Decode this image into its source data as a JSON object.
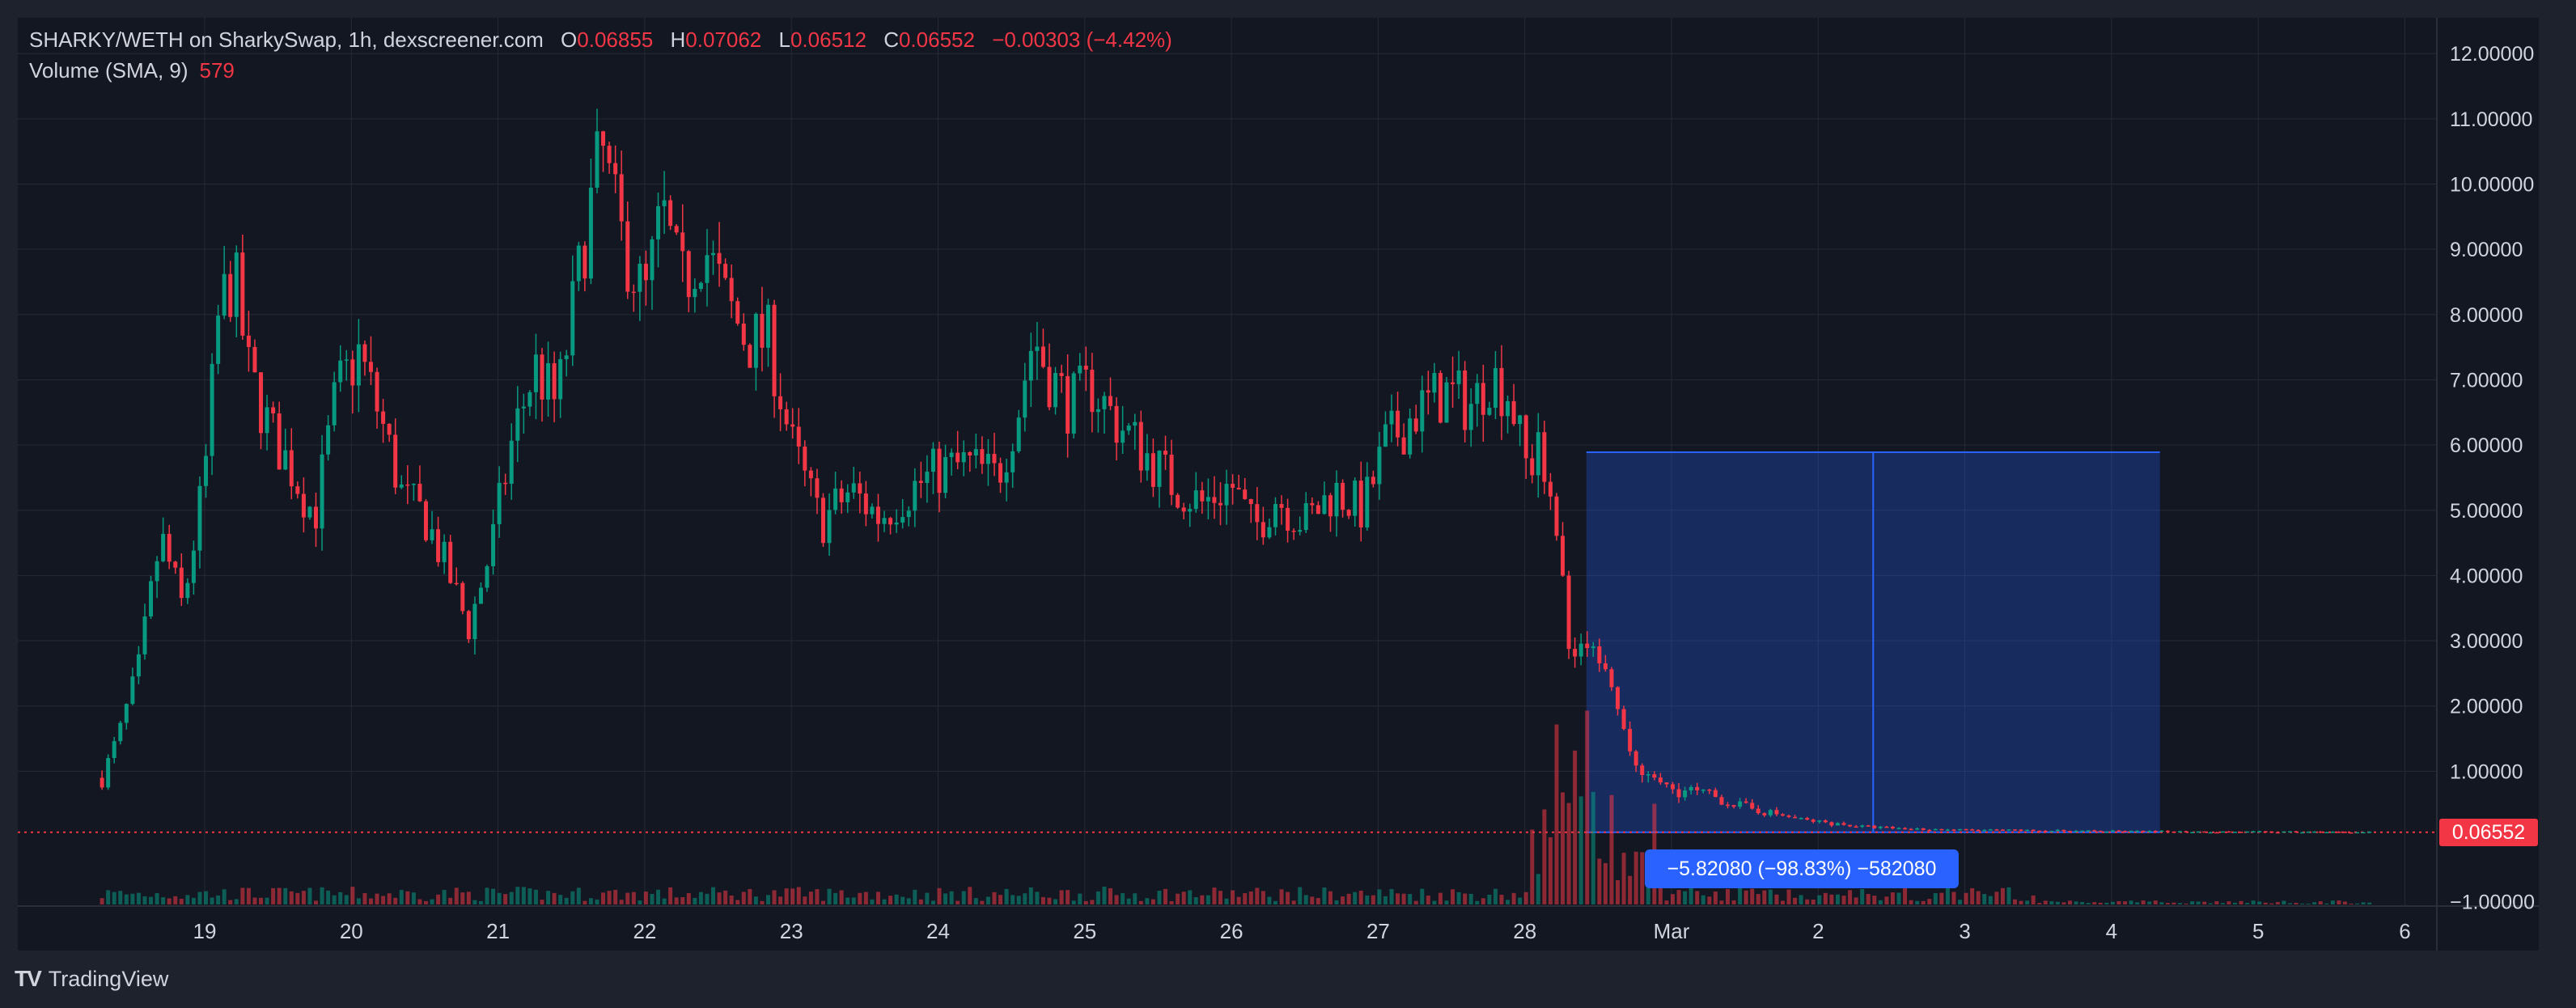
{
  "header": {
    "symbol": "SHARKY/WETH on SharkySwap, 1h, dexscreener.com",
    "o_label": "O",
    "o_value": "0.06855",
    "h_label": "H",
    "h_value": "0.07062",
    "l_label": "L",
    "l_value": "0.06512",
    "c_label": "C",
    "c_value": "0.06552",
    "change": "−0.00303 (−4.42%)"
  },
  "volume": {
    "label": "Volume (SMA, 9)",
    "value": "579"
  },
  "brand": {
    "name": "TradingView",
    "logo": "TV"
  },
  "price_badge": "0.06552",
  "measurement": "−5.82080 (−98.83%) −582080",
  "colors": {
    "up": "#089981",
    "down": "#f23645",
    "background": "#131722",
    "measure": "#2962ff"
  },
  "chart_data": {
    "type": "candlestick",
    "y_ticks": [
      "12.00000",
      "11.00000",
      "10.00000",
      "9.00000",
      "8.00000",
      "7.00000",
      "6.00000",
      "5.00000",
      "4.00000",
      "3.00000",
      "2.00000",
      "1.00000",
      "−1.00000"
    ],
    "x_ticks": [
      "19",
      "20",
      "21",
      "22",
      "23",
      "24",
      "25",
      "26",
      "27",
      "28",
      "Mar",
      "2",
      "3",
      "4",
      "5",
      "6"
    ],
    "ylim": [
      -1,
      12.5
    ],
    "last_price": 0.06552,
    "measure_range": {
      "from": 5.89,
      "to": 0.0655,
      "start_day": 28.42,
      "end_day": 32.33
    },
    "close_path": [
      [
        18.3,
        0.9
      ],
      [
        18.42,
        1.6
      ],
      [
        18.55,
        2.6
      ],
      [
        18.7,
        4.6
      ],
      [
        18.85,
        3.5
      ],
      [
        19.0,
        5.5
      ],
      [
        19.1,
        8.1
      ],
      [
        19.2,
        8.6
      ],
      [
        19.3,
        7.1
      ],
      [
        19.45,
        6.2
      ],
      [
        19.6,
        5.6
      ],
      [
        19.75,
        4.9
      ],
      [
        19.9,
        6.8
      ],
      [
        20.05,
        7.4
      ],
      [
        20.2,
        6.4
      ],
      [
        20.35,
        5.2
      ],
      [
        20.5,
        4.9
      ],
      [
        20.65,
        4.1
      ],
      [
        20.8,
        3.2
      ],
      [
        20.95,
        4.4
      ],
      [
        21.1,
        6.1
      ],
      [
        21.25,
        7.2
      ],
      [
        21.4,
        6.6
      ],
      [
        21.55,
        8.6
      ],
      [
        21.7,
        10.6
      ],
      [
        21.85,
        9.1
      ],
      [
        22.0,
        8.2
      ],
      [
        22.12,
        9.6
      ],
      [
        22.25,
        8.4
      ],
      [
        22.4,
        9.1
      ],
      [
        22.55,
        8.2
      ],
      [
        22.7,
        7.6
      ],
      [
        22.85,
        7.6
      ],
      [
        23.0,
        6.0
      ],
      [
        23.2,
        4.8
      ],
      [
        23.4,
        5.3
      ],
      [
        23.6,
        4.9
      ],
      [
        23.8,
        5.3
      ],
      [
        24.0,
        5.6
      ],
      [
        24.2,
        5.7
      ],
      [
        24.4,
        5.5
      ],
      [
        24.55,
        6.6
      ],
      [
        24.65,
        7.7
      ],
      [
        24.75,
        7.1
      ],
      [
        24.9,
        6.6
      ],
      [
        25.05,
        6.9
      ],
      [
        25.2,
        6.4
      ],
      [
        25.4,
        5.9
      ],
      [
        25.6,
        5.4
      ],
      [
        25.8,
        5.1
      ],
      [
        26.0,
        5.4
      ],
      [
        26.15,
        4.7
      ],
      [
        26.3,
        5.2
      ],
      [
        26.5,
        4.8
      ],
      [
        26.7,
        5.3
      ],
      [
        26.9,
        5.0
      ],
      [
        27.05,
        6.0
      ],
      [
        27.25,
        6.5
      ],
      [
        27.45,
        6.8
      ],
      [
        27.65,
        6.6
      ],
      [
        27.75,
        7.1
      ],
      [
        27.9,
        6.8
      ],
      [
        28.0,
        5.7
      ],
      [
        28.1,
        5.8
      ],
      [
        28.2,
        5.3
      ],
      [
        28.3,
        2.9
      ],
      [
        28.4,
        3.0
      ],
      [
        28.5,
        2.7
      ],
      [
        28.6,
        2.1
      ],
      [
        28.7,
        1.4
      ],
      [
        28.8,
        0.9
      ],
      [
        28.95,
        0.75
      ],
      [
        29.1,
        0.7
      ],
      [
        29.3,
        0.6
      ],
      [
        29.5,
        0.45
      ],
      [
        29.7,
        0.35
      ],
      [
        29.9,
        0.25
      ],
      [
        30.1,
        0.2
      ],
      [
        30.3,
        0.15
      ],
      [
        30.6,
        0.12
      ],
      [
        31.0,
        0.1
      ],
      [
        31.5,
        0.09
      ],
      [
        32.0,
        0.08
      ],
      [
        32.5,
        0.075
      ],
      [
        33.0,
        0.07
      ],
      [
        33.5,
        0.068
      ],
      [
        33.8,
        0.0655
      ]
    ]
  }
}
